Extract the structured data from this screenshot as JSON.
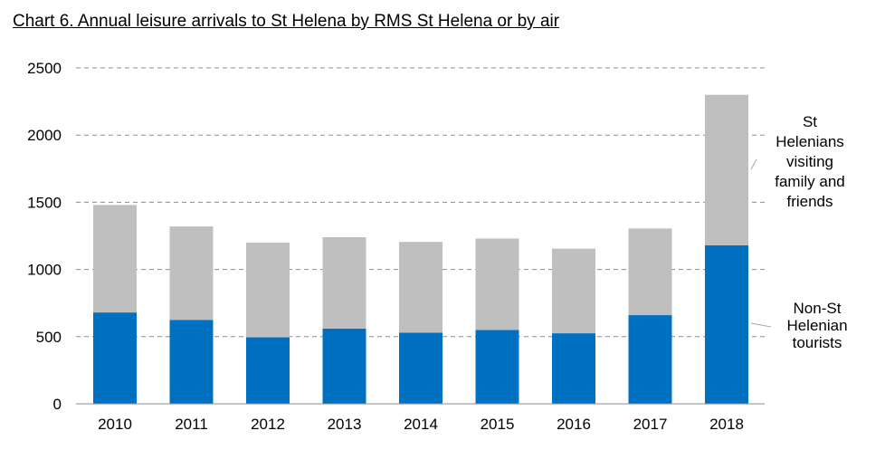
{
  "chart_data": {
    "type": "bar",
    "stacked": true,
    "title": "Chart 6. Annual leisure arrivals to St Helena by RMS St Helena or by air",
    "categories": [
      "2010",
      "2011",
      "2012",
      "2013",
      "2014",
      "2015",
      "2016",
      "2017",
      "2018"
    ],
    "series": [
      {
        "name": "Non-St Helenian tourists",
        "color": "#0070C0",
        "values": [
          680,
          625,
          495,
          560,
          530,
          550,
          525,
          660,
          1180
        ]
      },
      {
        "name": "St Helenians visiting family and friends",
        "color": "#BFBFBF",
        "values": [
          800,
          695,
          705,
          680,
          675,
          680,
          630,
          645,
          1120
        ]
      }
    ],
    "ylim": [
      0,
      2500
    ],
    "yticks": [
      "0",
      "500",
      "1000",
      "1500",
      "2000",
      "2500"
    ],
    "grid": true,
    "gridline_style": "dashed",
    "legend": "right, inline labels",
    "legend_lines": [
      [
        "St",
        "Helenians",
        "visiting",
        "family and",
        "friends"
      ],
      [
        "Non-St",
        "Helenian",
        "tourists"
      ]
    ]
  }
}
